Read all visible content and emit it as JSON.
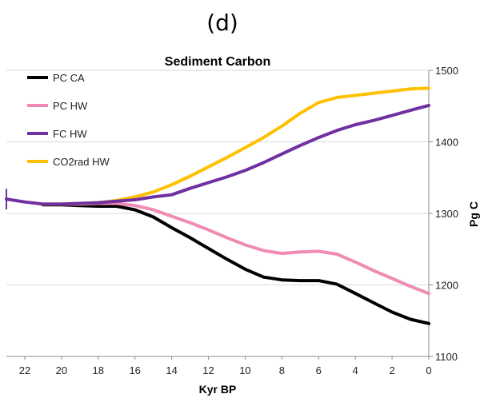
{
  "panel_label": "(d)",
  "chart_data": {
    "type": "line",
    "title": "Sediment Carbon",
    "xlabel": "Kyr BP",
    "ylabel": "Pg C",
    "xlim": [
      23,
      0
    ],
    "ylim": [
      1100,
      1500
    ],
    "x_reversed": true,
    "x_ticks": [
      22,
      20,
      18,
      16,
      14,
      12,
      10,
      8,
      6,
      4,
      2,
      0
    ],
    "y_ticks": [
      1100,
      1200,
      1300,
      1400,
      1500
    ],
    "y_axis_side": "right",
    "grid": "horizontal",
    "legend_position": "top-left",
    "colors": {
      "PC CA": "#000000",
      "PC HW": "#f08cb4",
      "FC HW": "#7030a0",
      "CO2rad HW": "#ffc000"
    },
    "series": [
      {
        "name": "PC CA",
        "x": [
          21,
          20,
          19,
          18,
          17,
          16,
          15,
          14,
          13,
          12,
          11,
          10,
          9,
          8,
          7,
          6,
          5,
          4,
          3,
          2,
          1,
          0
        ],
        "y": [
          1312,
          1312,
          1311,
          1310,
          1310,
          1305,
          1295,
          1280,
          1266,
          1251,
          1236,
          1222,
          1211,
          1207,
          1206,
          1206,
          1201,
          1188,
          1175,
          1162,
          1152,
          1146
        ]
      },
      {
        "name": "PC HW",
        "x": [
          21,
          20,
          19,
          18,
          17,
          16,
          15,
          14,
          13,
          12,
          11,
          10,
          9,
          8,
          7,
          6,
          5,
          4,
          3,
          2,
          1,
          0
        ],
        "y": [
          1313,
          1313,
          1313,
          1314,
          1314,
          1311,
          1305,
          1296,
          1287,
          1277,
          1266,
          1256,
          1248,
          1244,
          1246,
          1247,
          1243,
          1232,
          1220,
          1209,
          1198,
          1188
        ]
      },
      {
        "name": "FC HW",
        "x": [
          23,
          22,
          21,
          20,
          19,
          18,
          17,
          16,
          15,
          14,
          13,
          12,
          11,
          10,
          9,
          8,
          7,
          6,
          5,
          4,
          3,
          2,
          1,
          0
        ],
        "y": [
          1320,
          1316,
          1313,
          1313,
          1314,
          1315,
          1317,
          1319,
          1323,
          1326,
          1335,
          1343,
          1351,
          1360,
          1371,
          1383,
          1395,
          1406,
          1416,
          1424,
          1430,
          1437,
          1444,
          1451
        ]
      },
      {
        "name": "CO2rad HW",
        "x": [
          21,
          20,
          19,
          18,
          17,
          16,
          15,
          14,
          13,
          12,
          11,
          10,
          9,
          8,
          7,
          6,
          5,
          4,
          3,
          2,
          1,
          0
        ],
        "y": [
          1313,
          1313,
          1314,
          1315,
          1318,
          1323,
          1330,
          1340,
          1352,
          1365,
          1378,
          1392,
          1406,
          1422,
          1440,
          1455,
          1462,
          1465,
          1468,
          1471,
          1474,
          1475
        ]
      }
    ]
  }
}
